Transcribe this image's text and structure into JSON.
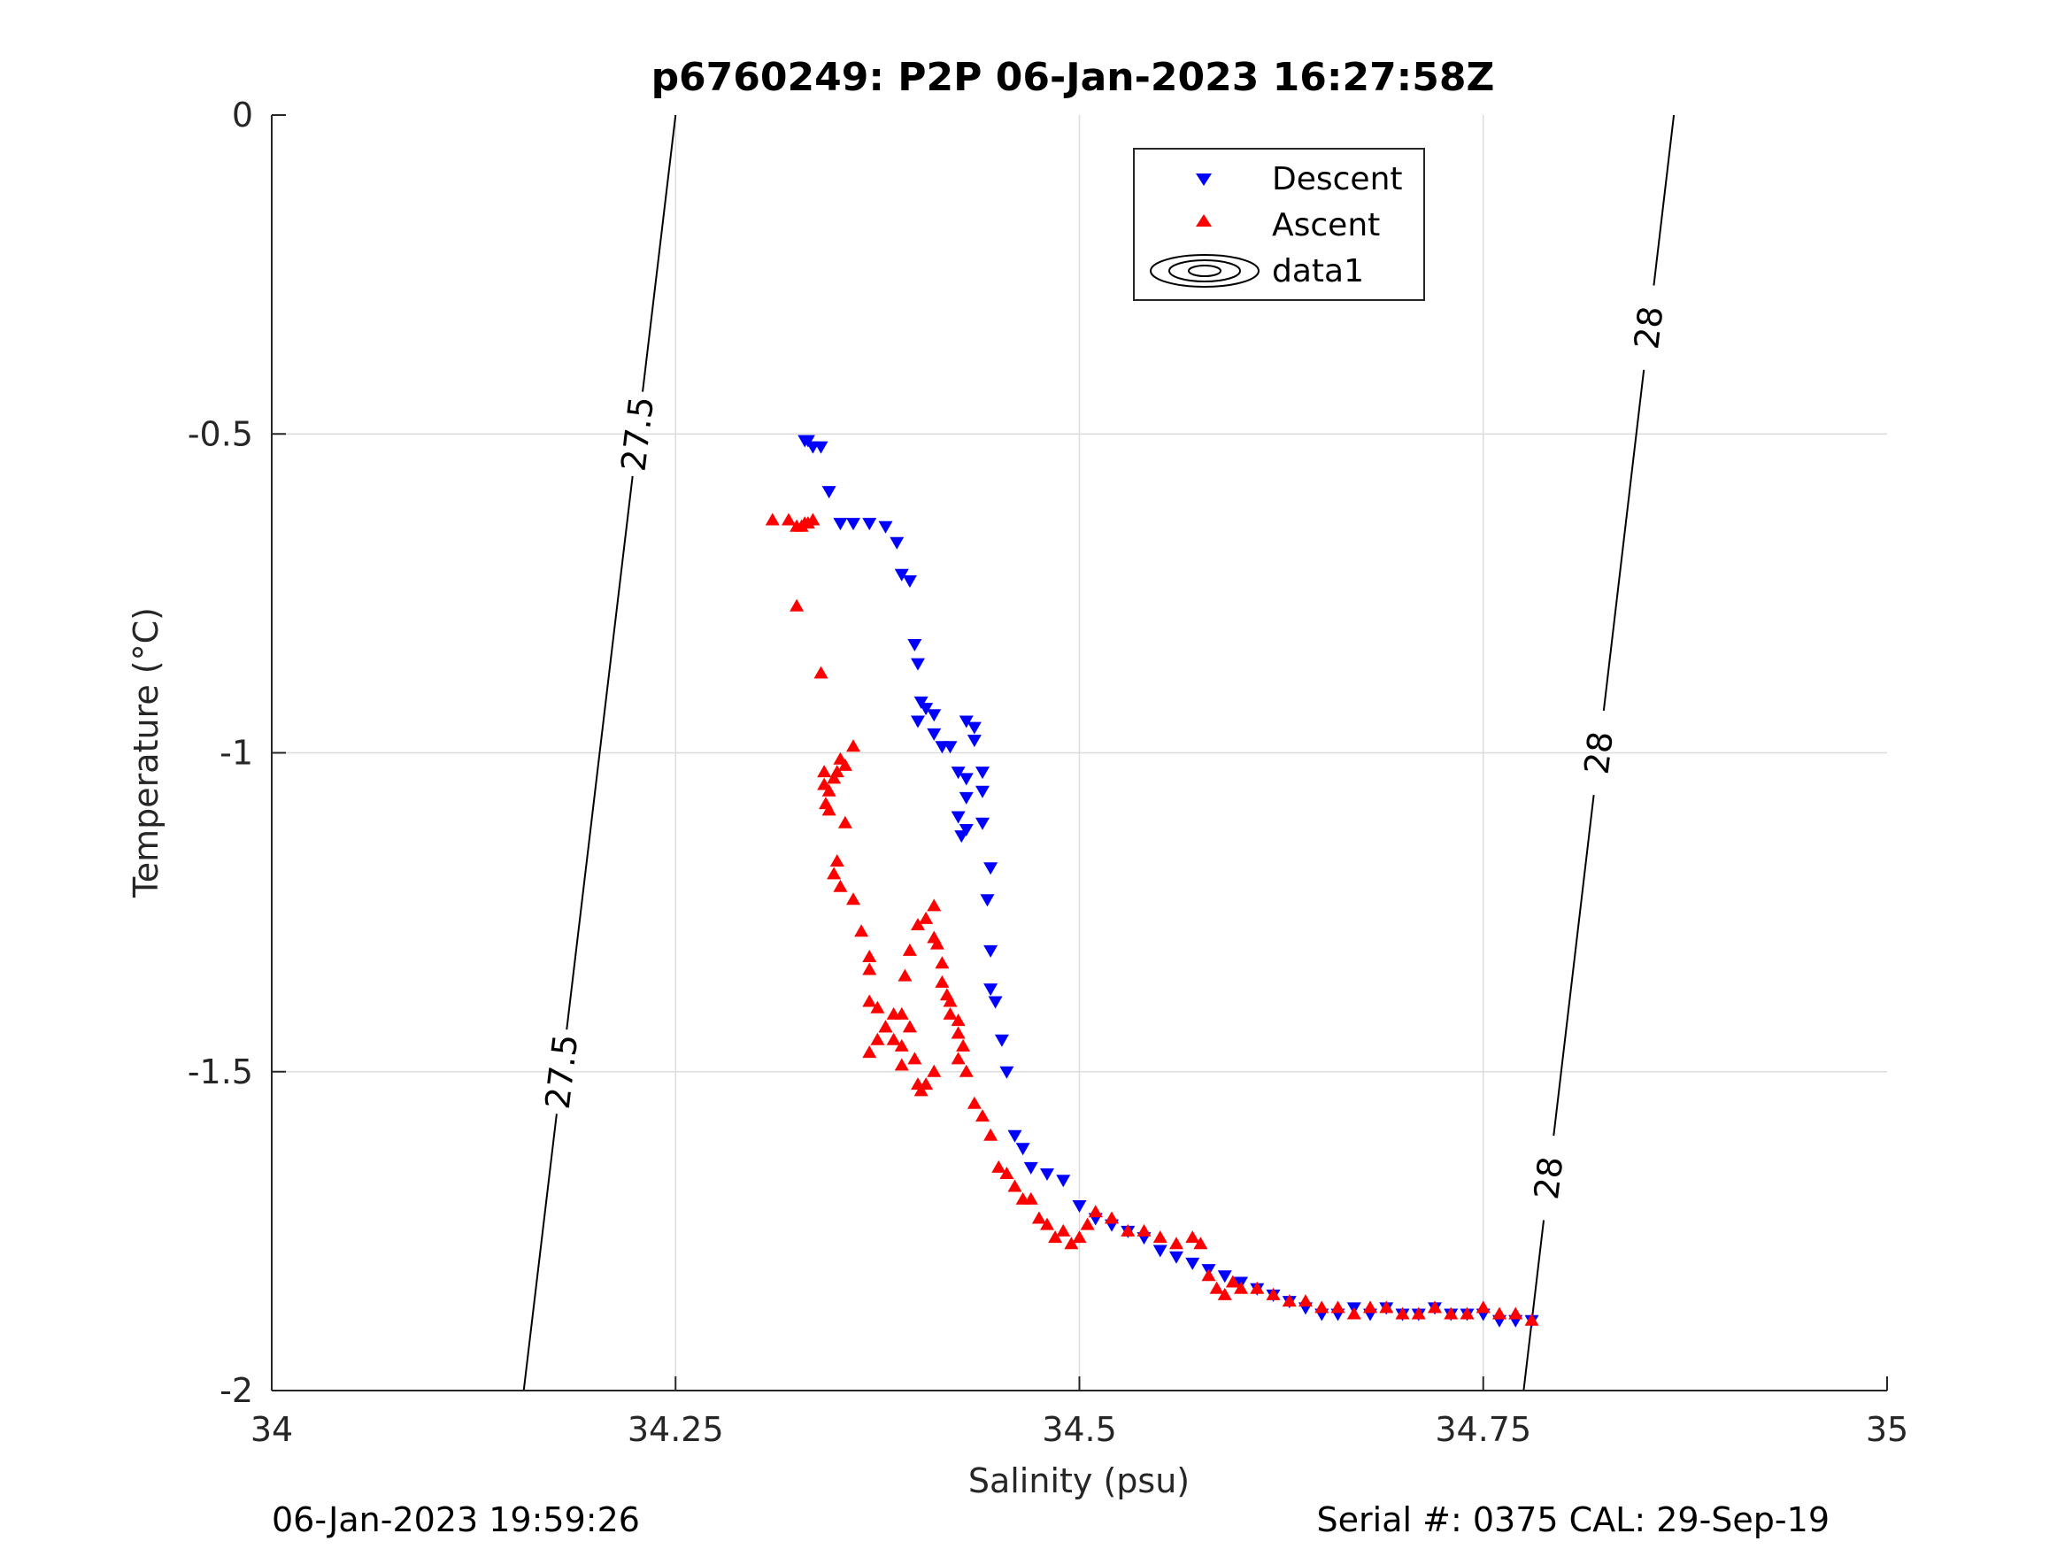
{
  "chart_data": {
    "type": "scatter",
    "title": "p6760249: P2P 06-Jan-2023 16:27:58Z",
    "xlabel": "Salinity (psu)",
    "ylabel": "Temperature (°C)",
    "xlim": [
      34,
      35
    ],
    "ylim": [
      -2,
      0
    ],
    "grid": true,
    "legend_position": "top-center",
    "x_ticks": [
      "34",
      "34.25",
      "34.5",
      "34.75",
      "35"
    ],
    "x_tick_values": [
      34,
      34.25,
      34.5,
      34.75,
      35
    ],
    "y_ticks": [
      "0",
      "-0.5",
      "-1",
      "-1.5",
      "-2"
    ],
    "y_tick_values": [
      0,
      -0.5,
      -1,
      -1.5,
      -2
    ],
    "series": [
      {
        "name": "Descent",
        "color": "#0000ff",
        "marker": "triangle-down",
        "x": [
          34.33,
          34.332,
          34.335,
          34.34,
          34.345,
          34.352,
          34.36,
          34.37,
          34.38,
          34.387,
          34.39,
          34.395,
          34.398,
          34.4,
          34.402,
          34.4,
          34.405,
          34.41,
          34.41,
          34.415,
          34.42,
          34.425,
          34.425,
          34.43,
          34.43,
          34.435,
          34.43,
          34.427,
          34.43,
          34.435,
          34.44,
          34.44,
          34.44,
          34.445,
          34.443,
          34.445,
          34.445,
          34.448,
          34.452,
          34.455,
          34.46,
          34.465,
          34.47,
          34.48,
          34.49,
          34.5,
          34.51,
          34.52,
          34.53,
          34.54,
          34.55,
          34.56,
          34.57,
          34.58,
          34.59,
          34.6,
          34.61,
          34.62,
          34.63,
          34.64,
          34.65,
          34.66,
          34.67,
          34.68,
          34.69,
          34.7,
          34.71,
          34.72,
          34.73,
          34.74,
          34.75,
          34.76,
          34.77,
          34.78
        ],
        "y": [
          -0.51,
          -0.51,
          -0.52,
          -0.52,
          -0.59,
          -0.64,
          -0.64,
          -0.64,
          -0.645,
          -0.67,
          -0.72,
          -0.73,
          -0.83,
          -0.86,
          -0.92,
          -0.95,
          -0.93,
          -0.94,
          -0.97,
          -0.99,
          -0.99,
          -1.03,
          -1.1,
          -1.12,
          -0.95,
          -0.96,
          -1.07,
          -1.13,
          -1.04,
          -0.98,
          -1.03,
          -1.06,
          -1.11,
          -1.18,
          -1.23,
          -1.31,
          -1.37,
          -1.39,
          -1.45,
          -1.5,
          -1.6,
          -1.62,
          -1.65,
          -1.66,
          -1.67,
          -1.71,
          -1.73,
          -1.74,
          -1.75,
          -1.76,
          -1.78,
          -1.79,
          -1.8,
          -1.81,
          -1.82,
          -1.83,
          -1.84,
          -1.85,
          -1.86,
          -1.87,
          -1.88,
          -1.88,
          -1.87,
          -1.88,
          -1.87,
          -1.88,
          -1.88,
          -1.87,
          -1.88,
          -1.88,
          -1.88,
          -1.89,
          -1.89,
          -1.89
        ]
      },
      {
        "name": "Ascent",
        "color": "#ff0000",
        "marker": "triangle-up",
        "x": [
          34.31,
          34.32,
          34.325,
          34.328,
          34.33,
          34.332,
          34.335,
          34.325,
          34.34,
          34.342,
          34.342,
          34.345,
          34.343,
          34.345,
          34.348,
          34.35,
          34.352,
          34.355,
          34.36,
          34.355,
          34.35,
          34.348,
          34.352,
          34.36,
          34.365,
          34.37,
          34.37,
          34.37,
          34.375,
          34.38,
          34.385,
          34.39,
          34.39,
          34.392,
          34.395,
          34.4,
          34.405,
          34.41,
          34.41,
          34.412,
          34.415,
          34.415,
          34.418,
          34.42,
          34.42,
          34.425,
          34.425,
          34.428,
          34.425,
          34.41,
          34.405,
          34.402,
          34.4,
          34.398,
          34.395,
          34.39,
          34.385,
          34.38,
          34.375,
          34.37,
          34.43,
          34.435,
          34.44,
          34.445,
          34.45,
          34.455,
          34.46,
          34.465,
          34.47,
          34.475,
          34.48,
          34.485,
          34.49,
          34.495,
          34.5,
          34.505,
          34.51,
          34.52,
          34.53,
          34.54,
          34.55,
          34.56,
          34.57,
          34.575,
          34.58,
          34.585,
          34.59,
          34.595,
          34.6,
          34.61,
          34.62,
          34.63,
          34.64,
          34.65,
          34.66,
          34.67,
          34.68,
          34.69,
          34.7,
          34.71,
          34.72,
          34.73,
          34.74,
          34.75,
          34.76,
          34.77,
          34.78
        ],
        "y": [
          -0.635,
          -0.635,
          -0.645,
          -0.645,
          -0.64,
          -0.64,
          -0.635,
          -0.77,
          -0.875,
          -1.03,
          -1.05,
          -1.06,
          -1.08,
          -1.09,
          -1.04,
          -1.03,
          -1.01,
          -1.02,
          -0.99,
          -1.11,
          -1.17,
          -1.19,
          -1.21,
          -1.23,
          -1.28,
          -1.32,
          -1.34,
          -1.39,
          -1.4,
          -1.43,
          -1.45,
          -1.46,
          -1.49,
          -1.35,
          -1.31,
          -1.27,
          -1.26,
          -1.24,
          -1.29,
          -1.3,
          -1.33,
          -1.36,
          -1.38,
          -1.39,
          -1.41,
          -1.42,
          -1.44,
          -1.46,
          -1.48,
          -1.5,
          -1.52,
          -1.53,
          -1.52,
          -1.48,
          -1.43,
          -1.41,
          -1.41,
          -1.43,
          -1.45,
          -1.47,
          -1.5,
          -1.55,
          -1.57,
          -1.6,
          -1.65,
          -1.66,
          -1.68,
          -1.7,
          -1.7,
          -1.73,
          -1.74,
          -1.76,
          -1.75,
          -1.77,
          -1.76,
          -1.74,
          -1.72,
          -1.73,
          -1.75,
          -1.75,
          -1.76,
          -1.77,
          -1.76,
          -1.77,
          -1.82,
          -1.84,
          -1.85,
          -1.83,
          -1.84,
          -1.84,
          -1.85,
          -1.86,
          -1.86,
          -1.87,
          -1.87,
          -1.88,
          -1.87,
          -1.87,
          -1.88,
          -1.88,
          -1.87,
          -1.88,
          -1.88,
          -1.87,
          -1.88,
          -1.88,
          -1.89
        ]
      }
    ],
    "contours": [
      {
        "level": "27.5",
        "x": [
          34.156,
          34.25
        ],
        "y": [
          -2,
          0
        ],
        "labels": [
          "27.5",
          "27.5"
        ]
      },
      {
        "level": "28",
        "x": [
          34.775,
          34.868
        ],
        "y": [
          -2,
          0
        ],
        "labels": [
          "28",
          "28",
          "28"
        ]
      }
    ],
    "legend": [
      "Descent",
      "Ascent",
      "data1"
    ]
  },
  "footer": {
    "date": "06-Jan-2023 19:59:26",
    "serial": "Serial #: 0375  CAL: 29-Sep-19"
  }
}
